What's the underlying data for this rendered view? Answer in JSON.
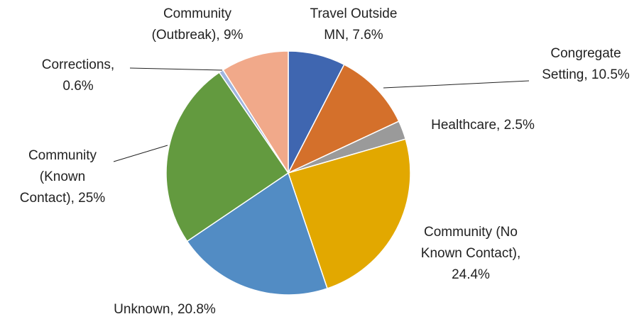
{
  "chart_data": {
    "type": "pie",
    "categories": [
      "Travel Outside MN",
      "Congregate Setting",
      "Healthcare",
      "Community (No Known Contact)",
      "Unknown",
      "Community (Known Contact)",
      "Corrections",
      "Community (Outbreak)"
    ],
    "values": [
      7.6,
      10.5,
      2.5,
      24.4,
      20.8,
      25,
      0.6,
      9
    ],
    "value_labels": [
      "7.6%",
      "10.5%",
      "2.5%",
      "24.4%",
      "20.8%",
      "25%",
      "0.6%",
      "9%"
    ],
    "colors": [
      "#3f66b0",
      "#d4702b",
      "#9a9a9a",
      "#e2a800",
      "#528cc4",
      "#639a3f",
      "#9fb5df",
      "#f1a98a"
    ]
  }
}
